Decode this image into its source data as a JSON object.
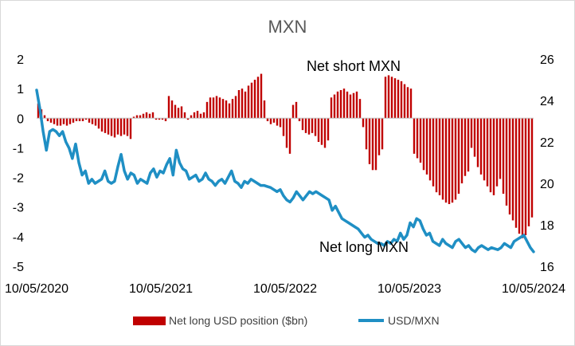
{
  "chart_data": {
    "type": "bar+line",
    "title": "MXN",
    "x_tick_labels": [
      "10/05/2020",
      "10/05/2021",
      "10/05/2022",
      "10/05/2023",
      "10/05/2024"
    ],
    "y_left": {
      "range": [
        -5,
        2
      ],
      "ticks": [
        "2",
        "1",
        "0",
        "-1",
        "-2",
        "-3",
        "-4",
        "-5"
      ]
    },
    "y_right": {
      "range": [
        16,
        26
      ],
      "ticks": [
        "26",
        "24",
        "22",
        "20",
        "18",
        "16"
      ]
    },
    "annotations": {
      "top": "Net short MXN",
      "bottom": "Net long MXN"
    },
    "legend": {
      "position": "bottom",
      "bar_label": "Net long USD position ($bn)",
      "line_label": "USD/MXN"
    },
    "colors": {
      "bar": "#c00000",
      "line": "#1f8fc4",
      "title": "#595959"
    },
    "series": [
      {
        "name": "Net long USD position ($bn)",
        "type": "bar",
        "axis": "left",
        "values": [
          0.5,
          0.3,
          0.1,
          -0.1,
          -0.15,
          -0.2,
          -0.25,
          -0.25,
          -0.2,
          -0.25,
          -0.2,
          -0.15,
          -0.1,
          -0.1,
          -0.1,
          -0.05,
          -0.15,
          -0.2,
          -0.25,
          -0.35,
          -0.45,
          -0.5,
          -0.55,
          -0.6,
          -0.65,
          -0.55,
          -0.6,
          -0.55,
          -0.6,
          -0.7,
          0.05,
          0.1,
          0.1,
          0.15,
          0.2,
          0.15,
          0.2,
          -0.05,
          -0.05,
          -0.05,
          -0.1,
          0.75,
          0.6,
          0.45,
          0.35,
          0.4,
          0.2,
          -0.05,
          0.1,
          0.2,
          0.25,
          0.15,
          0.2,
          0.55,
          0.7,
          0.7,
          0.75,
          0.7,
          0.65,
          0.6,
          0.5,
          0.65,
          0.75,
          0.95,
          1.0,
          0.9,
          1.1,
          1.2,
          1.3,
          1.4,
          1.5,
          0.6,
          -0.1,
          -0.2,
          -0.15,
          -0.25,
          -0.3,
          -0.6,
          -1.0,
          -1.2,
          0.45,
          0.55,
          -0.1,
          -0.4,
          -0.5,
          -0.55,
          -0.5,
          -0.6,
          -0.8,
          -0.9,
          -1.0,
          -0.75,
          0.7,
          0.8,
          0.9,
          0.95,
          1.0,
          0.9,
          0.8,
          0.85,
          0.9,
          0.65,
          -0.3,
          -1.05,
          -1.55,
          -1.75,
          -1.75,
          -1.25,
          -1.05,
          1.4,
          1.45,
          1.4,
          1.35,
          1.3,
          1.25,
          1.15,
          1.05,
          1.0,
          -1.2,
          -1.35,
          -1.5,
          -1.75,
          -1.9,
          -2.1,
          -2.3,
          -2.5,
          -2.6,
          -2.75,
          -2.85,
          -2.9,
          -2.85,
          -2.75,
          -2.55,
          -2.2,
          -1.95,
          -1.8,
          -1.0,
          -1.3,
          -1.65,
          -1.9,
          -2.1,
          -2.3,
          -2.5,
          -2.6,
          -2.3,
          -2.05,
          -2.55,
          -2.95,
          -3.25,
          -3.45,
          -3.7,
          -3.9,
          -4.05,
          -3.95,
          -3.65,
          -3.35
        ]
      },
      {
        "name": "USD/MXN",
        "type": "line",
        "axis": "right",
        "values": [
          24.5,
          23.6,
          22.5,
          21.6,
          22.5,
          22.6,
          22.5,
          22.3,
          22.5,
          22.0,
          21.7,
          21.2,
          21.9,
          21.0,
          20.4,
          20.6,
          20.0,
          20.2,
          20.0,
          20.1,
          20.2,
          20.6,
          20.1,
          20.0,
          20.1,
          20.8,
          21.4,
          20.6,
          20.2,
          20.5,
          20.4,
          20.0,
          20.2,
          20.1,
          20.0,
          20.5,
          20.7,
          20.3,
          20.6,
          20.5,
          20.9,
          21.2,
          20.4,
          21.6,
          21.0,
          20.7,
          20.6,
          20.2,
          20.3,
          20.4,
          20.1,
          20.2,
          20.5,
          20.2,
          20.1,
          19.9,
          20.1,
          20.2,
          20.0,
          20.3,
          20.6,
          20.1,
          20.0,
          19.8,
          20.1,
          20.0,
          20.2,
          20.1,
          20.0,
          19.9,
          19.9,
          19.85,
          19.8,
          19.7,
          19.6,
          19.7,
          19.4,
          19.2,
          19.1,
          19.3,
          19.6,
          19.4,
          19.2,
          19.4,
          19.6,
          19.5,
          19.6,
          19.5,
          19.4,
          19.3,
          19.2,
          18.7,
          18.9,
          18.6,
          18.3,
          18.2,
          18.1,
          18.0,
          17.9,
          17.8,
          17.6,
          17.4,
          17.5,
          17.3,
          17.2,
          17.1,
          17.1,
          17.0,
          17.2,
          17.1,
          17.3,
          17.2,
          17.6,
          17.3,
          17.5,
          18.1,
          17.9,
          18.3,
          18.2,
          17.8,
          17.5,
          17.6,
          17.2,
          17.1,
          17.0,
          17.3,
          17.1,
          17.0,
          16.9,
          17.2,
          17.3,
          17.1,
          16.9,
          17.0,
          16.8,
          16.7,
          16.9,
          17.0,
          16.9,
          16.8,
          16.9,
          16.85,
          16.8,
          16.9,
          17.1,
          17.0,
          16.9,
          17.2,
          17.3,
          17.4,
          17.5,
          17.2,
          16.9,
          16.7
        ]
      }
    ]
  }
}
